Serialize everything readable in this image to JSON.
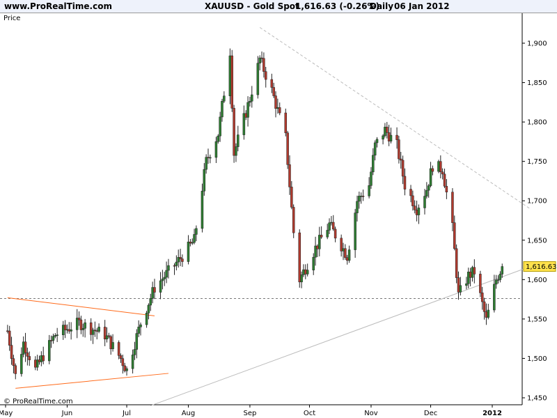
{
  "header": {
    "site": "www.ProRealTime.com",
    "instrument": "XAUUSD - Gold Spot",
    "quote": "1,616.63 (-0.26%)",
    "period": "Daily",
    "date": "06 Jan 2012"
  },
  "panel_label": "Price",
  "copyright": "© ProRealTime.com",
  "colors": {
    "up": "#2e7d32",
    "down": "#b03a2e",
    "price_tag": "#ffe24d",
    "triangle": "#ff6a1a",
    "trend_line": "#bbbbbb",
    "reference_line": "#777777"
  },
  "chart_data": {
    "type": "candlestick",
    "title": "XAUUSD - Gold Spot",
    "ylabel": "Price",
    "ylim": [
      1440,
      1930
    ],
    "y_ticks": [
      "1,450",
      "1,500",
      "1,550",
      "1,600",
      "1,650",
      "1,700",
      "1,750",
      "1,800",
      "1,850",
      "1,900"
    ],
    "x_ticks": [
      "May",
      "Jun",
      "Jul",
      "Aug",
      "Sep",
      "Oct",
      "Nov",
      "Dec",
      "2012"
    ],
    "last_price": "1,616.63",
    "reference_level": 1576,
    "anchors": [
      [
        "2011-05-02",
        1535
      ],
      [
        "2011-05-06",
        1478
      ],
      [
        "2011-05-10",
        1520
      ],
      [
        "2011-05-16",
        1486
      ],
      [
        "2011-05-26",
        1530
      ],
      [
        "2011-06-07",
        1545
      ],
      [
        "2011-06-20",
        1530
      ],
      [
        "2011-06-28",
        1500
      ],
      [
        "2011-07-01",
        1485
      ],
      [
        "2011-07-08",
        1545
      ],
      [
        "2011-07-15",
        1590
      ],
      [
        "2011-07-29",
        1630
      ],
      [
        "2011-08-04",
        1650
      ],
      [
        "2011-08-10",
        1750
      ],
      [
        "2011-08-16",
        1785
      ],
      [
        "2011-08-22",
        1890
      ],
      [
        "2011-08-24",
        1760
      ],
      [
        "2011-09-01",
        1830
      ],
      [
        "2011-09-06",
        1880
      ],
      [
        "2011-09-12",
        1840
      ],
      [
        "2011-09-19",
        1780
      ],
      [
        "2011-09-23",
        1660
      ],
      [
        "2011-09-26",
        1600
      ],
      [
        "2011-10-04",
        1640
      ],
      [
        "2011-10-11",
        1670
      ],
      [
        "2011-10-20",
        1630
      ],
      [
        "2011-10-25",
        1700
      ],
      [
        "2011-10-31",
        1720
      ],
      [
        "2011-11-03",
        1770
      ],
      [
        "2011-11-08",
        1790
      ],
      [
        "2011-11-14",
        1770
      ],
      [
        "2011-11-18",
        1720
      ],
      [
        "2011-11-24",
        1690
      ],
      [
        "2011-11-29",
        1715
      ],
      [
        "2011-12-02",
        1745
      ],
      [
        "2011-12-07",
        1740
      ],
      [
        "2011-12-12",
        1665
      ],
      [
        "2011-12-15",
        1580
      ],
      [
        "2011-12-20",
        1605
      ],
      [
        "2011-12-23",
        1610
      ],
      [
        "2011-12-29",
        1548
      ],
      [
        "2012-01-03",
        1600
      ],
      [
        "2012-01-06",
        1616.63
      ]
    ],
    "annotations": {
      "triangle_upper": [
        [
          "2011-05-02",
          1577
        ],
        [
          "2011-07-15",
          1554
        ]
      ],
      "triangle_lower": [
        [
          "2011-05-06",
          1462
        ],
        [
          "2011-07-22",
          1481
        ]
      ],
      "resistance_line": [
        [
          "2011-09-06",
          1920
        ],
        [
          "2012-01-20",
          1690
        ]
      ],
      "support_line": [
        [
          "2011-07-13",
          1440
        ],
        [
          "2012-01-26",
          1622
        ]
      ]
    }
  }
}
